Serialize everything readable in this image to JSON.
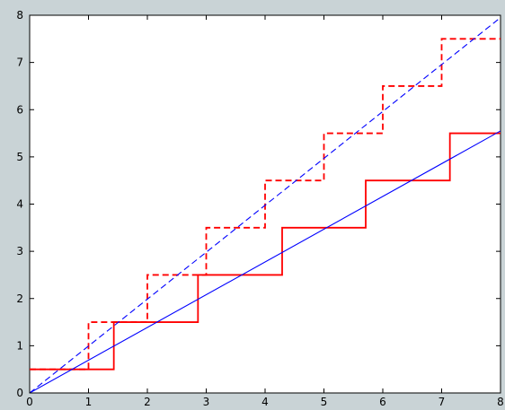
{
  "chart_data": {
    "type": "line",
    "xlim": [
      0,
      8
    ],
    "ylim": [
      0,
      8
    ],
    "x_ticks": [
      "0",
      "1",
      "2",
      "3",
      "4",
      "5",
      "6",
      "7",
      "8"
    ],
    "y_ticks": [
      "0",
      "1",
      "2",
      "3",
      "4",
      "5",
      "6",
      "7",
      "8"
    ],
    "grid": false,
    "series": [
      {
        "style": "solid",
        "color": "#ff0000",
        "kind": "step",
        "points": [
          [
            0,
            0.5
          ],
          [
            1.43,
            0.5
          ],
          [
            1.43,
            1.5
          ],
          [
            2.86,
            1.5
          ],
          [
            2.86,
            2.5
          ],
          [
            4.29,
            2.5
          ],
          [
            4.29,
            3.5
          ],
          [
            5.71,
            3.5
          ],
          [
            5.71,
            4.5
          ],
          [
            7.14,
            4.5
          ],
          [
            7.14,
            5.5
          ],
          [
            8,
            5.5
          ]
        ]
      },
      {
        "style": "dashed",
        "color": "#ff0000",
        "kind": "step",
        "points": [
          [
            0,
            0.5
          ],
          [
            1,
            0.5
          ],
          [
            1,
            1.5
          ],
          [
            2,
            1.5
          ],
          [
            2,
            2.5
          ],
          [
            3,
            2.5
          ],
          [
            3,
            3.5
          ],
          [
            4,
            3.5
          ],
          [
            4,
            4.5
          ],
          [
            5,
            4.5
          ],
          [
            5,
            5.5
          ],
          [
            6,
            5.5
          ],
          [
            6,
            6.5
          ],
          [
            7,
            6.5
          ],
          [
            7,
            7.5
          ],
          [
            8,
            7.5
          ]
        ]
      },
      {
        "style": "solid",
        "color": "#0000ff",
        "kind": "line",
        "points": [
          [
            0,
            0
          ],
          [
            8,
            5.55
          ]
        ]
      },
      {
        "style": "dashed",
        "color": "#0000ff",
        "kind": "line",
        "points": [
          [
            0,
            0
          ],
          [
            8,
            7.95
          ]
        ]
      }
    ]
  }
}
